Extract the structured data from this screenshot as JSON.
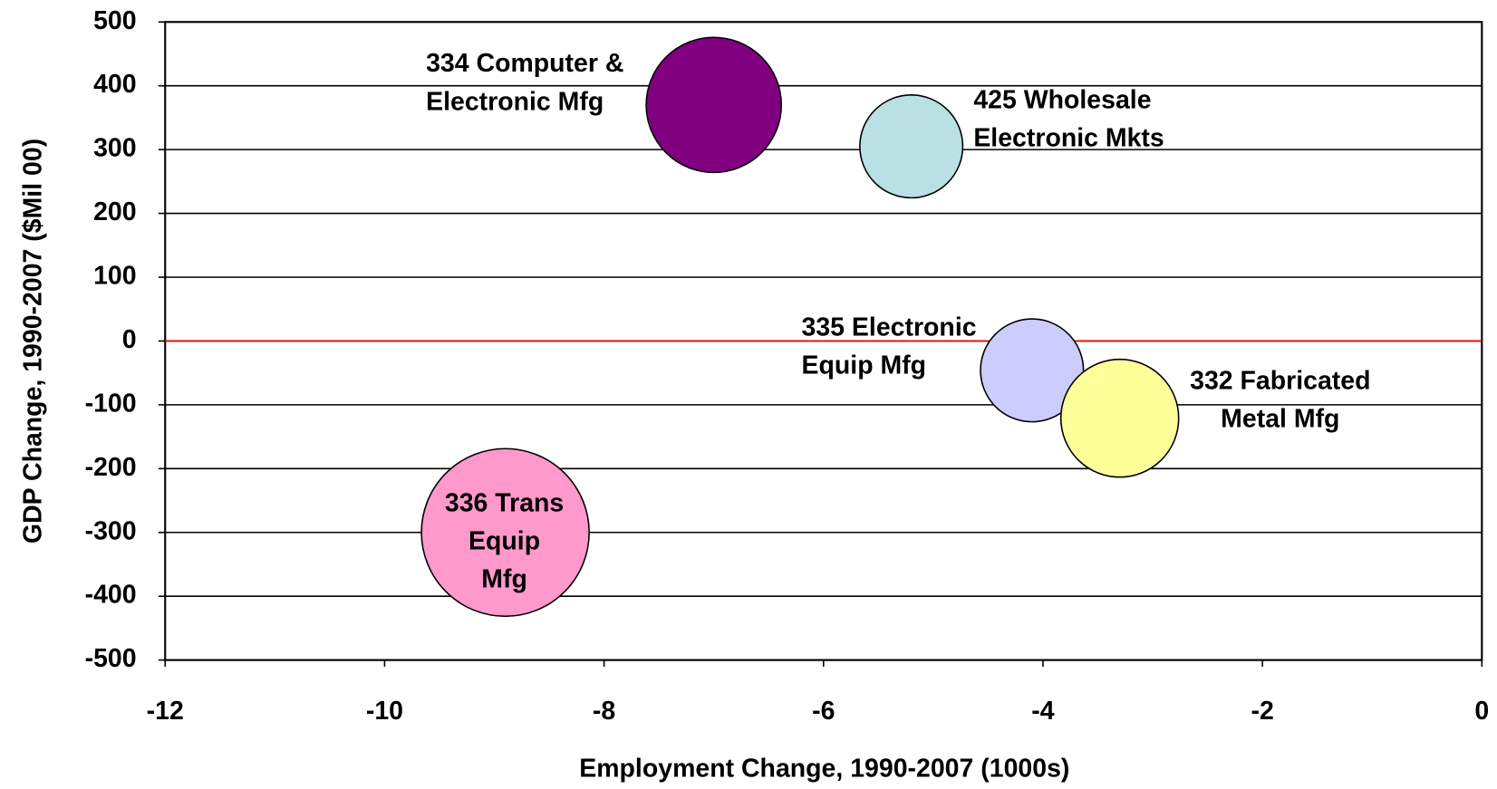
{
  "chart_data": {
    "type": "bubble",
    "x_label": "Employment Change, 1990-2007 (1000s)",
    "y_label": "GDP Change, 1990-2007 ($Mil 00)",
    "xlim": [
      -12,
      0
    ],
    "xticks": [
      -12,
      -10,
      -8,
      -6,
      -4,
      -2,
      0
    ],
    "ylim": [
      -500,
      500
    ],
    "yticks": [
      -500,
      -400,
      -300,
      -200,
      -100,
      0,
      100,
      200,
      300,
      400,
      500
    ],
    "grid": true,
    "zero_line_color": "#ff0000",
    "x": [
      -7.0,
      -5.2,
      -4.1,
      -3.3,
      -8.9
    ],
    "y": [
      370,
      305,
      -46,
      -121,
      -300
    ],
    "sizes": [
      50,
      29,
      29,
      38,
      77
    ],
    "colors": [
      "#800080",
      "#b9e0e3",
      "#ccccff",
      "#ffff99",
      "#ff99cc"
    ],
    "labels": [
      [
        "334 Computer &",
        "Electronic Mfg"
      ],
      [
        "425 Wholesale",
        "Electronic Mkts"
      ],
      [
        "335 Electronic",
        "Equip Mfg"
      ],
      [
        "332 Fabricated",
        "Metal Mfg"
      ],
      [
        "336 Trans",
        "Equip",
        "Mfg"
      ]
    ]
  }
}
